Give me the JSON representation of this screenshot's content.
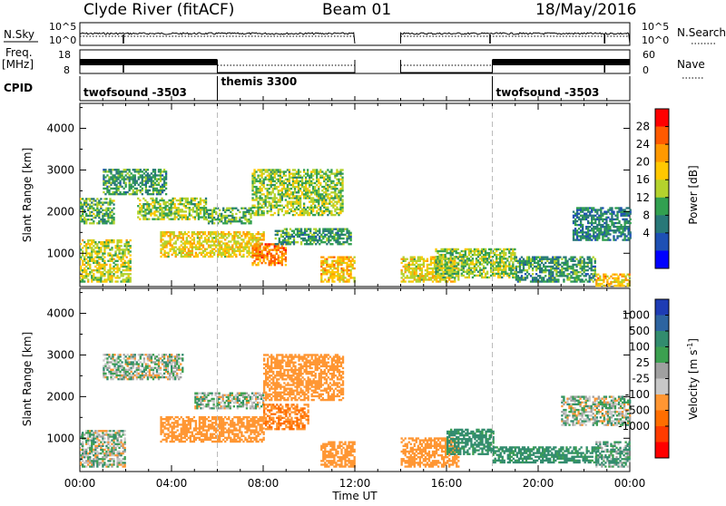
{
  "header": {
    "title": "Clyde River (fitACF)",
    "beam": "Beam 01",
    "date": "18/May/2016"
  },
  "top_panels": {
    "nsky_label": "N.Sky",
    "nsearch_label": "N.Search",
    "left_ticks": [
      "10^5",
      "10^0"
    ],
    "right_ticks": [
      "10^5",
      "10^0"
    ],
    "freq_label_line1": "Freq.",
    "freq_label_line2": "[MHz]",
    "freq_ticks": [
      "18",
      "8"
    ],
    "nave_label": "Nave",
    "nave_ticks": [
      "60",
      "0"
    ],
    "cpid_label": "CPID",
    "modes": [
      {
        "text": "twofsound -3503",
        "start_hour": 0
      },
      {
        "text": "themis 3300",
        "start_hour": 6
      },
      {
        "text": "twofsound -3503",
        "start_hour": 18
      }
    ]
  },
  "x_axis": {
    "title": "Time UT",
    "ticks": [
      "00:00",
      "04:00",
      "08:00",
      "12:00",
      "16:00",
      "20:00",
      "00:00"
    ]
  },
  "colorbars": {
    "power": {
      "label": "Power [dB]",
      "ticks": [
        "28",
        "24",
        "20",
        "16",
        "12",
        "8",
        "4"
      ],
      "colors": [
        "#ff0000",
        "#ff5a00",
        "#ff9900",
        "#ffc800",
        "#b4d22d",
        "#32a050",
        "#287878",
        "#1e50b4",
        "#0000ff"
      ]
    },
    "velocity": {
      "label": "Velocity [m s",
      "label_sup": "-1",
      "label_end": "]",
      "ticks": [
        "1000",
        "500",
        "100",
        "25",
        "-25",
        "-100",
        "-500",
        "-1000"
      ],
      "colors": [
        "#1e3cb4",
        "#2d64a0",
        "#328c6e",
        "#3ca050",
        "#a0a0a0",
        "#c8c8c8",
        "#ff9632",
        "#ff6e00",
        "#ff3c00",
        "#ff0000"
      ]
    }
  },
  "chart_data": [
    {
      "type": "heatmap",
      "panel": "power",
      "ylabel": "Slant Range [km]",
      "xlabel": "Time UT",
      "xlim": [
        0,
        24
      ],
      "ylim": [
        200,
        4600
      ],
      "yticks": [
        1000,
        2000,
        3000,
        4000
      ],
      "cbar_range": [
        0,
        30
      ],
      "gap_hours": [
        12,
        14
      ],
      "blobs": [
        {
          "t0": 0.0,
          "t1": 2.2,
          "r0": 300,
          "r1": 1300,
          "v": 16
        },
        {
          "t0": 0.0,
          "t1": 1.5,
          "r0": 1700,
          "r1": 2300,
          "v": 12
        },
        {
          "t0": 1.0,
          "t1": 3.8,
          "r0": 2400,
          "r1": 3000,
          "v": 10
        },
        {
          "t0": 2.5,
          "t1": 5.5,
          "r0": 1800,
          "r1": 2300,
          "v": 14
        },
        {
          "t0": 3.5,
          "t1": 8.0,
          "r0": 900,
          "r1": 1500,
          "v": 18
        },
        {
          "t0": 5.5,
          "t1": 7.5,
          "r0": 1700,
          "r1": 2100,
          "v": 12
        },
        {
          "t0": 7.5,
          "t1": 9.0,
          "r0": 700,
          "r1": 1200,
          "v": 24
        },
        {
          "t0": 7.5,
          "t1": 11.5,
          "r0": 1900,
          "r1": 3000,
          "v": 14
        },
        {
          "t0": 8.5,
          "t1": 11.8,
          "r0": 1200,
          "r1": 1600,
          "v": 10
        },
        {
          "t0": 10.5,
          "t1": 12.0,
          "r0": 300,
          "r1": 900,
          "v": 20
        },
        {
          "t0": 14.0,
          "t1": 16.5,
          "r0": 300,
          "r1": 900,
          "v": 18
        },
        {
          "t0": 15.5,
          "t1": 19.0,
          "r0": 400,
          "r1": 1100,
          "v": 14
        },
        {
          "t0": 19.0,
          "t1": 22.5,
          "r0": 300,
          "r1": 900,
          "v": 10
        },
        {
          "t0": 21.5,
          "t1": 24.0,
          "r0": 1300,
          "r1": 2100,
          "v": 8
        },
        {
          "t0": 22.5,
          "t1": 24.0,
          "r0": 200,
          "r1": 500,
          "v": 20
        }
      ]
    },
    {
      "type": "heatmap",
      "panel": "velocity",
      "ylabel": "Slant Range [km]",
      "xlabel": "Time UT",
      "xlim": [
        0,
        24
      ],
      "ylim": [
        200,
        4600
      ],
      "yticks": [
        1000,
        2000,
        3000,
        4000
      ],
      "cbar_range": [
        -1000,
        1000
      ],
      "gap_hours": [
        12,
        14
      ],
      "blobs": [
        {
          "t0": 0.0,
          "t1": 2.0,
          "r0": 300,
          "r1": 1200,
          "v": 0
        },
        {
          "t0": 1.0,
          "t1": 4.5,
          "r0": 2400,
          "r1": 3000,
          "v": 0
        },
        {
          "t0": 3.5,
          "t1": 8.0,
          "r0": 900,
          "r1": 1500,
          "v": -300
        },
        {
          "t0": 5.0,
          "t1": 8.0,
          "r0": 1700,
          "r1": 2100,
          "v": 0
        },
        {
          "t0": 8.0,
          "t1": 11.5,
          "r0": 1900,
          "r1": 3000,
          "v": -300
        },
        {
          "t0": 8.0,
          "t1": 10.0,
          "r0": 1200,
          "r1": 1800,
          "v": -500
        },
        {
          "t0": 10.5,
          "t1": 12.0,
          "r0": 300,
          "r1": 900,
          "v": -300
        },
        {
          "t0": 14.0,
          "t1": 16.5,
          "r0": 300,
          "r1": 1000,
          "v": -300
        },
        {
          "t0": 16.0,
          "t1": 18.0,
          "r0": 600,
          "r1": 1200,
          "v": 200
        },
        {
          "t0": 18.0,
          "t1": 22.5,
          "r0": 400,
          "r1": 800,
          "v": 200
        },
        {
          "t0": 21.0,
          "t1": 24.0,
          "r0": 1300,
          "r1": 2000,
          "v": 0
        },
        {
          "t0": 22.5,
          "t1": 24.0,
          "r0": 300,
          "r1": 900,
          "v": 100
        }
      ]
    }
  ]
}
